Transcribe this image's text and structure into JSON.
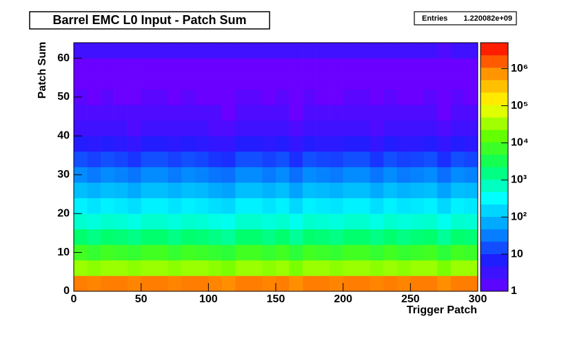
{
  "chart_data": {
    "type": "heatmap",
    "title": "Barrel EMC L0 Input - Patch Sum",
    "stats": {
      "name": "Entries",
      "value": "1.220082e+09"
    },
    "x_label": "Trigger Patch",
    "y_label": "Patch Sum",
    "x_bins": [
      0,
      10,
      20,
      30,
      40,
      50,
      60,
      70,
      80,
      90,
      100,
      110,
      120,
      130,
      140,
      150,
      160,
      170,
      180,
      190,
      200,
      210,
      220,
      230,
      240,
      250,
      260,
      270,
      280,
      290,
      300
    ],
    "y_bins": [
      0,
      4,
      8,
      12,
      16,
      20,
      24,
      28,
      32,
      36,
      40,
      44,
      48,
      52,
      56,
      60,
      64
    ],
    "xlim": [
      0,
      300
    ],
    "ylim": [
      0,
      64
    ],
    "xticks": [
      0,
      50,
      100,
      150,
      200,
      250,
      300
    ],
    "yticks": [
      0,
      10,
      20,
      30,
      40,
      50,
      60
    ],
    "zlim": [
      1,
      5000000
    ],
    "log_z": true,
    "zticks": [
      1,
      10,
      {
        "value": 100,
        "label": "10²"
      },
      {
        "value": 1000,
        "label": "10³"
      },
      {
        "value": 10000,
        "label": "10⁴"
      },
      {
        "value": 100000,
        "label": "10⁵"
      },
      {
        "value": 1000000,
        "label": "10⁶"
      }
    ],
    "palette": [
      "#6a00ff",
      "#1e1eff",
      "#0096ff",
      "#00ffff",
      "#00ff64",
      "#64ff00",
      "#ffff00",
      "#ff9600",
      "#ff0000"
    ],
    "z": [
      [
        1000000.0,
        900000.0,
        1000000.0,
        1000000.0,
        900000.0,
        1000000.0,
        1000000.0,
        900000.0,
        1000000.0,
        1000000.0,
        900000.0,
        800000.0,
        1000000.0,
        1000000.0,
        900000.0,
        1000000.0,
        800000.0,
        1000000.0,
        1000000.0,
        900000.0,
        1000000.0,
        1000000.0,
        900000.0,
        1000000.0,
        900000.0,
        1000000.0,
        1000000.0,
        800000.0,
        1000000.0,
        1000000.0
      ],
      [
        30000.0,
        25000.0,
        30000.0,
        30000.0,
        25000.0,
        30000.0,
        30000.0,
        25000.0,
        30000.0,
        30000.0,
        25000.0,
        20000.0,
        30000.0,
        30000.0,
        25000.0,
        30000.0,
        20000.0,
        30000.0,
        30000.0,
        25000.0,
        30000.0,
        30000.0,
        25000.0,
        30000.0,
        25000.0,
        30000.0,
        30000.0,
        20000.0,
        30000.0,
        30000.0
      ],
      [
        8000.0,
        6000.0,
        8000.0,
        7000.0,
        6000.0,
        8000.0,
        8000.0,
        6000.0,
        8000.0,
        7000.0,
        6000.0,
        5000.0,
        8000.0,
        8000.0,
        6000.0,
        8000.0,
        5000.0,
        8000.0,
        7000.0,
        6000.0,
        8000.0,
        8000.0,
        6000.0,
        8000.0,
        6000.0,
        7000.0,
        8000.0,
        5000.0,
        8000.0,
        7000.0
      ],
      [
        2000.0,
        1500.0,
        2000.0,
        1800.0,
        1500.0,
        2000.0,
        2000.0,
        1500.0,
        2000.0,
        1800.0,
        1500.0,
        1200.0,
        2000.0,
        2000.0,
        1500.0,
        2000.0,
        1200.0,
        2000.0,
        1800.0,
        1500.0,
        2000.0,
        2000.0,
        1500.0,
        2000.0,
        1500.0,
        1800.0,
        2000.0,
        1200.0,
        2000.0,
        1800.0
      ],
      [
        600,
        500,
        600,
        550,
        450,
        600,
        600,
        500,
        600,
        550,
        450,
        400,
        600,
        600,
        500,
        600,
        400,
        600,
        550,
        500,
        600,
        600,
        450,
        600,
        500,
        550,
        600,
        400,
        600,
        550
      ],
      [
        250,
        200,
        250,
        220,
        180,
        250,
        250,
        200,
        250,
        220,
        180,
        160,
        250,
        250,
        200,
        250,
        160,
        250,
        220,
        200,
        250,
        250,
        180,
        250,
        200,
        220,
        250,
        160,
        250,
        220
      ],
      [
        100,
        80,
        100,
        90,
        70,
        100,
        100,
        80,
        100,
        90,
        70,
        60,
        100,
        100,
        80,
        100,
        60,
        100,
        90,
        80,
        100,
        100,
        70,
        100,
        80,
        90,
        100,
        60,
        100,
        90
      ],
      [
        40,
        30,
        40,
        35,
        28,
        40,
        40,
        30,
        40,
        35,
        28,
        25,
        40,
        40,
        30,
        40,
        25,
        40,
        35,
        30,
        40,
        40,
        28,
        40,
        30,
        35,
        40,
        25,
        40,
        35
      ],
      [
        15,
        12,
        15,
        13,
        10,
        15,
        15,
        12,
        15,
        13,
        10,
        9,
        15,
        15,
        12,
        15,
        9,
        15,
        13,
        12,
        15,
        15,
        10,
        15,
        12,
        13,
        15,
        9,
        15,
        13
      ],
      [
        6,
        5,
        6,
        5,
        4,
        6,
        6,
        5,
        6,
        5,
        4,
        4,
        6,
        6,
        5,
        6,
        4,
        6,
        5,
        5,
        6,
        6,
        4,
        6,
        5,
        5,
        6,
        4,
        6,
        5
      ],
      [
        3,
        3,
        3,
        3,
        2,
        3,
        3,
        3,
        3,
        3,
        2,
        2,
        3,
        3,
        3,
        3,
        2,
        3,
        3,
        3,
        3,
        3,
        2,
        3,
        3,
        3,
        3,
        2,
        3,
        3
      ],
      [
        2,
        2,
        2,
        2,
        2,
        2,
        2,
        2,
        2,
        2,
        2,
        1,
        2,
        2,
        2,
        2,
        1,
        2,
        2,
        2,
        2,
        2,
        2,
        2,
        2,
        2,
        2,
        1,
        2,
        2
      ],
      [
        1.5,
        1,
        1.5,
        1,
        1,
        1.5,
        1.5,
        1,
        1.5,
        1,
        1,
        1,
        1.5,
        1.5,
        1,
        1.5,
        1,
        1.5,
        1,
        1,
        1.5,
        1.5,
        1,
        1.5,
        1,
        1,
        1.5,
        1,
        1.5,
        1
      ],
      [
        1,
        1,
        1,
        1,
        1,
        1,
        1,
        1,
        1,
        1,
        1,
        1,
        1,
        1,
        1,
        1,
        1,
        1,
        1,
        1,
        1,
        1,
        1,
        1,
        1,
        1,
        1,
        1,
        1,
        1
      ],
      [
        1,
        1,
        1,
        1,
        1,
        1,
        1,
        1,
        1,
        1,
        1,
        1,
        1,
        1,
        1,
        1,
        1,
        1,
        1,
        1,
        1,
        1,
        1,
        1,
        1,
        1,
        1,
        1,
        1,
        1
      ],
      [
        3,
        3,
        3,
        3,
        3,
        3,
        3,
        3,
        3,
        3,
        3,
        3,
        3,
        3,
        3,
        3,
        3,
        3,
        3,
        3,
        3,
        3,
        3,
        3,
        3,
        3,
        3,
        2,
        3,
        3
      ]
    ]
  }
}
